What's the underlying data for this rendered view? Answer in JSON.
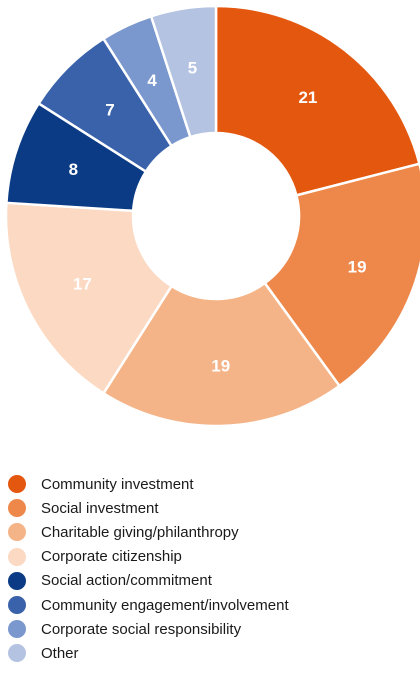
{
  "chart_data": {
    "type": "pie",
    "variant": "donut",
    "categories": [
      "Community investment",
      "Social investment",
      "Charitable giving/philanthropy",
      "Corporate citizenship",
      "Social action/commitment",
      "Community engagement/involvement",
      "Corporate social responsibility",
      "Other"
    ],
    "values": [
      21,
      19,
      19,
      17,
      8,
      7,
      4,
      5
    ],
    "labels": [
      "21",
      "19",
      "19",
      "17",
      "8",
      "7",
      "4",
      "5"
    ],
    "colors": [
      "#E4570F",
      "#EE874A",
      "#F5B487",
      "#FBD9C2",
      "#0B3B85",
      "#3962AA",
      "#7B98CE",
      "#B4C3E2"
    ],
    "legend_position": "bottom-left"
  }
}
